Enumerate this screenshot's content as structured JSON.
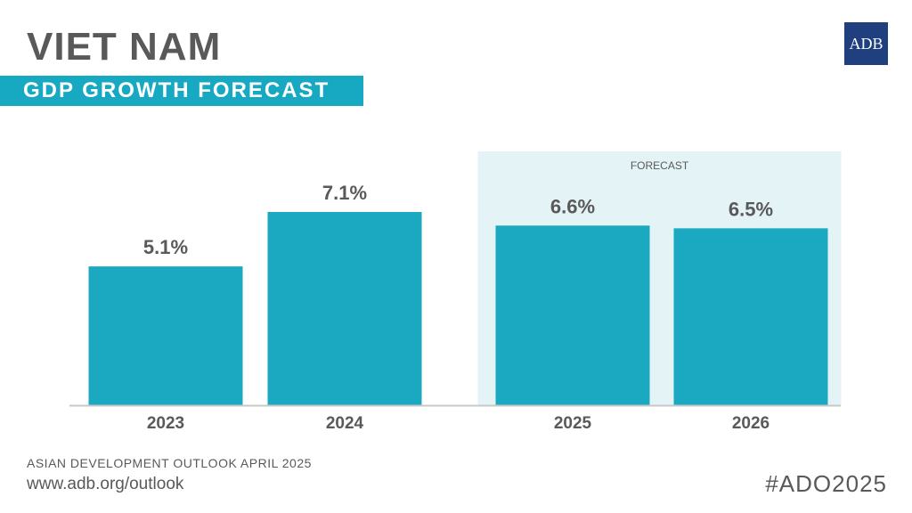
{
  "header": {
    "title": "VIET NAM",
    "subtitle": "GDP GROWTH FORECAST",
    "logo_text": "ADB"
  },
  "colors": {
    "bar": "#1aa9c1",
    "forecast_band": "#e3f3f6",
    "accent": "#18a9c2",
    "logo_bg": "#1f3f7f",
    "text": "#595959"
  },
  "chart_data": {
    "type": "bar",
    "categories": [
      "2023",
      "2024",
      "2025",
      "2026"
    ],
    "values": [
      5.1,
      7.1,
      6.6,
      6.5
    ],
    "value_labels": [
      "5.1%",
      "7.1%",
      "6.6%",
      "6.5%"
    ],
    "forecast_categories": [
      "2025",
      "2026"
    ],
    "forecast_label": "FORECAST",
    "ylim": [
      0,
      7.1
    ],
    "grid": false
  },
  "footer": {
    "source": "ASIAN DEVELOPMENT OUTLOOK APRIL 2025",
    "url": "www.adb.org/outlook",
    "hashtag": "#ADO2025"
  }
}
